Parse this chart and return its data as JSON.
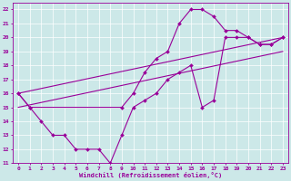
{
  "xlabel": "Windchill (Refroidissement éolien,°C)",
  "bg_color": "#cce8e8",
  "line_color": "#990099",
  "xlim": [
    -0.5,
    23.5
  ],
  "ylim": [
    11,
    22.5
  ],
  "xticks": [
    0,
    1,
    2,
    3,
    4,
    5,
    6,
    7,
    8,
    9,
    10,
    11,
    12,
    13,
    14,
    15,
    16,
    17,
    18,
    19,
    20,
    21,
    22,
    23
  ],
  "yticks": [
    11,
    12,
    13,
    14,
    15,
    16,
    17,
    18,
    19,
    20,
    21,
    22
  ],
  "series": [
    {
      "x": [
        0,
        1,
        2,
        3,
        4,
        5,
        6,
        7,
        8,
        9,
        10,
        11,
        12,
        13,
        14,
        15,
        16,
        17,
        18,
        19,
        20,
        21,
        22,
        23
      ],
      "y": [
        16,
        15,
        14,
        13,
        13,
        12,
        12,
        12,
        11,
        13,
        15,
        15.5,
        16,
        17,
        17.5,
        18,
        15,
        15.5,
        20,
        20,
        20,
        19.5,
        19.5,
        20
      ],
      "marker": true
    },
    {
      "x": [
        0,
        23
      ],
      "y": [
        15,
        19
      ],
      "marker": false
    },
    {
      "x": [
        0,
        23
      ],
      "y": [
        16,
        20
      ],
      "marker": false
    },
    {
      "x": [
        0,
        1,
        9,
        10,
        11,
        12,
        13,
        14,
        15,
        16,
        17,
        18,
        19,
        20,
        21,
        22,
        23
      ],
      "y": [
        16,
        15,
        15,
        16,
        17.5,
        18.5,
        19,
        21,
        22,
        22,
        21.5,
        20.5,
        20.5,
        20,
        19.5,
        19.5,
        20
      ],
      "marker": true
    }
  ]
}
